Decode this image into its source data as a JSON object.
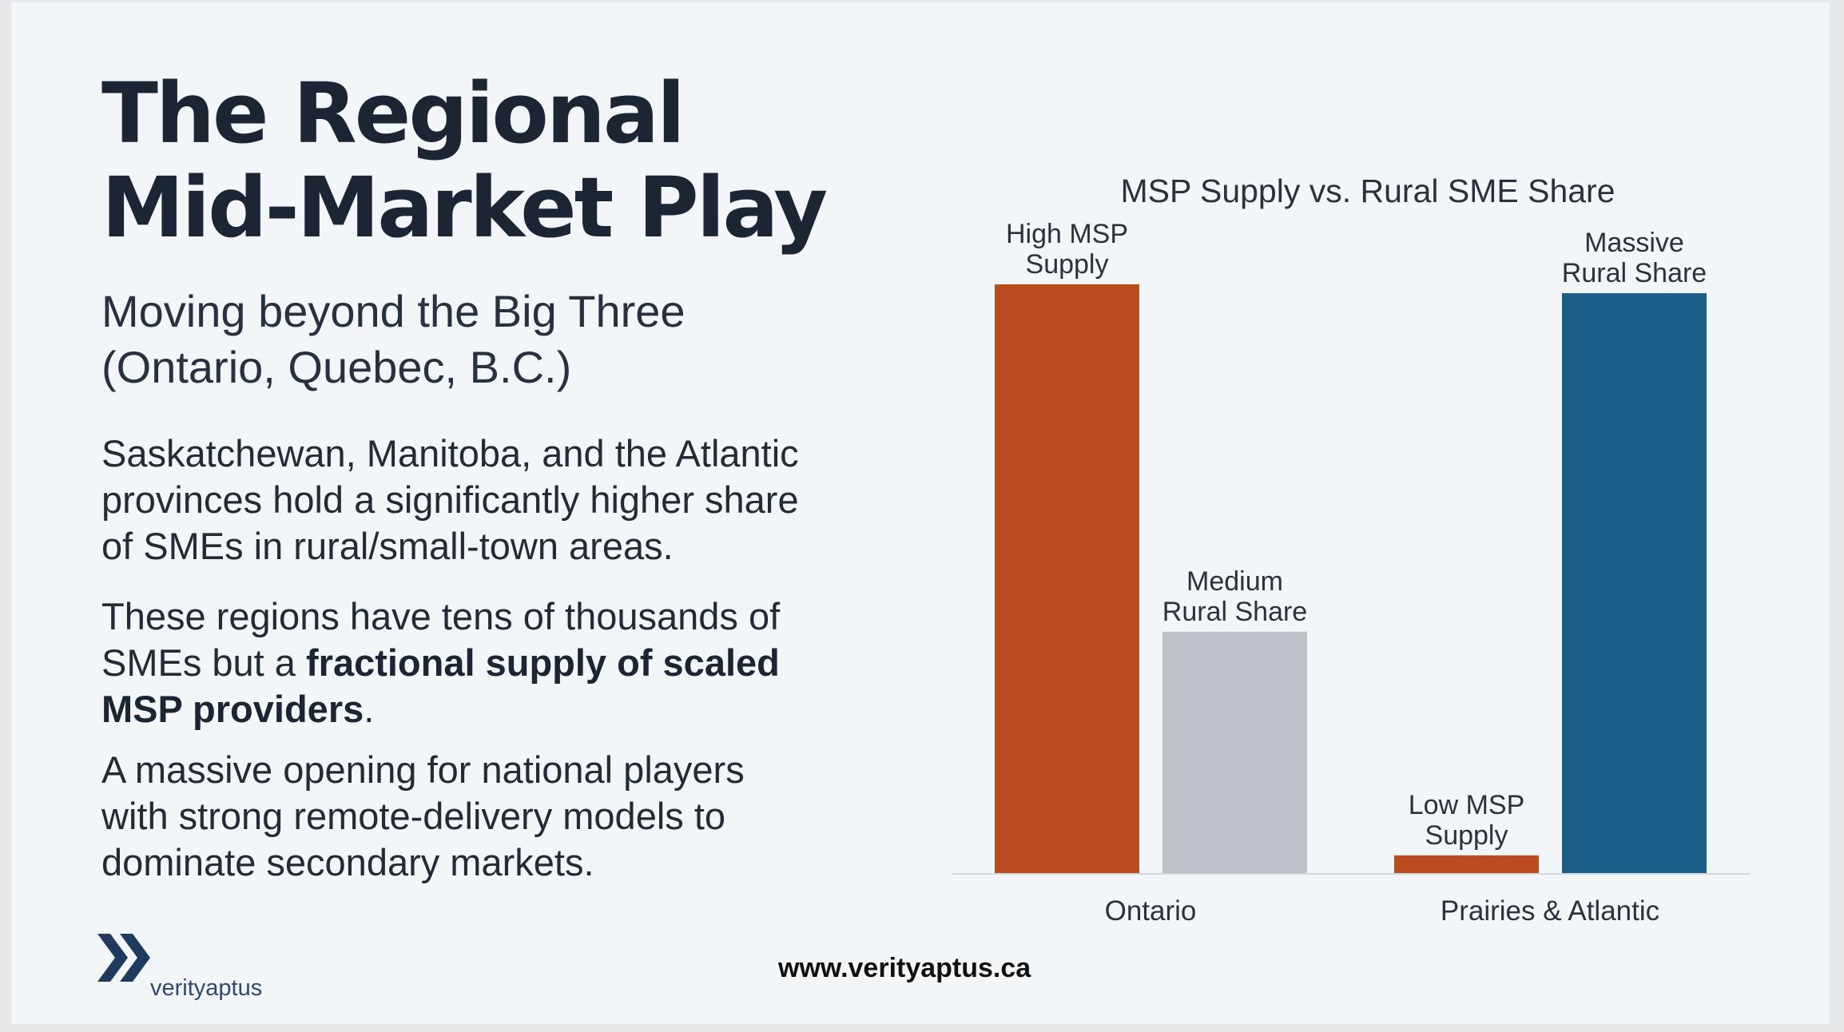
{
  "title": {
    "line1": "The Regional",
    "line2": "Mid-Market Play"
  },
  "subtitle": {
    "line1": "Moving beyond the Big Three",
    "line2": "(Ontario, Quebec, B.C.)"
  },
  "paragraphs": {
    "p1": {
      "line1": "Saskatchewan, Manitoba, and the Atlantic",
      "line2": "provinces hold a significantly higher share",
      "line3": "of SMEs in rural/small-town areas."
    },
    "p2": {
      "line1": "These regions have tens of thousands of",
      "line2_pre": "SMEs but a ",
      "line2_bold": "fractional supply of scaled",
      "line3_bold": "MSP providers",
      "line3_post": "."
    },
    "p3": {
      "line1": "A massive opening for national players",
      "line2": "with strong remote-delivery models to",
      "line3": "dominate secondary markets."
    }
  },
  "brand": {
    "logo_text": "verityaptus",
    "url": "www.verityaptus.ca"
  },
  "colors": {
    "msp_supply": "#b84c1f",
    "medium_share": "#bdc2c9",
    "massive_share": "#1b5f87",
    "baseline": "#d3d8de",
    "logo": "#1e3a5c"
  },
  "chart_data": {
    "type": "bar",
    "title": "MSP Supply vs. Rural SME Share",
    "categories": [
      "Ontario",
      "Prairies & Atlantic"
    ],
    "bars": [
      {
        "category": "Ontario",
        "value": 100,
        "label": [
          "High MSP",
          "Supply"
        ],
        "color": "#b84c1f"
      },
      {
        "category": "Ontario",
        "value": 41,
        "label": [
          "Medium",
          "Rural Share"
        ],
        "color": "#bdc2c9"
      },
      {
        "category": "Prairies & Atlantic",
        "value": 3,
        "label": [
          "Low MSP",
          "Supply"
        ],
        "color": "#b84c1f"
      },
      {
        "category": "Prairies & Atlantic",
        "value": 98.5,
        "label": [
          "Massive",
          "Rural Share"
        ],
        "color": "#1b5f87"
      }
    ],
    "ylim": [
      0,
      100
    ],
    "grid": false,
    "legend": "none"
  }
}
